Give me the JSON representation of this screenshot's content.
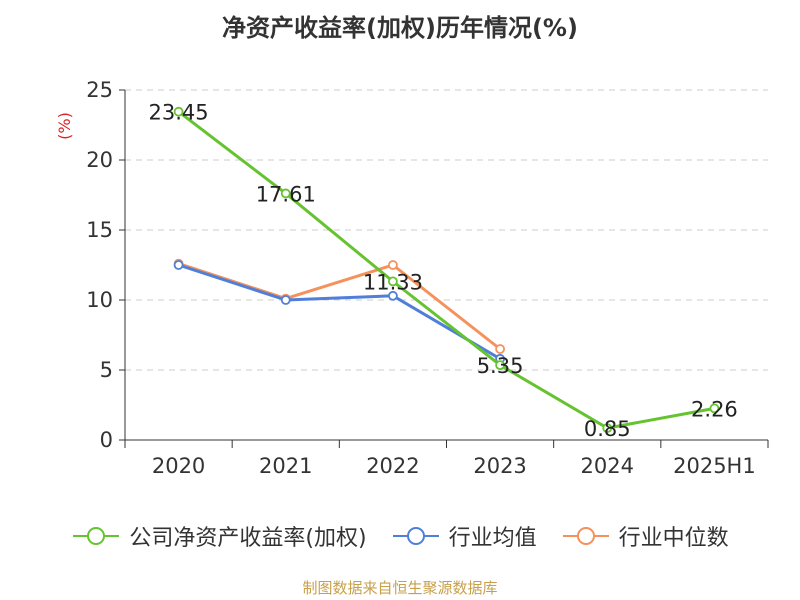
{
  "title": "净资产收益率(加权)历年情况(%)",
  "source_note": "制图数据来自恒生聚源数据库",
  "chart_data": {
    "type": "line",
    "categories": [
      "2020",
      "2021",
      "2022",
      "2023",
      "2024",
      "2025H1"
    ],
    "ylabel": "(%)",
    "ylim": [
      0,
      25
    ],
    "yticks": [
      0,
      5,
      10,
      15,
      20,
      25
    ],
    "grid": true,
    "legend_position": "bottom",
    "series": [
      {
        "name": "公司净资产收益率(加权)",
        "color": "#66c330",
        "values": [
          23.45,
          17.61,
          11.33,
          5.35,
          0.85,
          2.26
        ],
        "labels": [
          "23.45",
          "17.61",
          "11.33",
          "5.35",
          "0.85",
          "2.26"
        ]
      },
      {
        "name": "行业均值",
        "color": "#4f7fd9",
        "values": [
          12.5,
          10.0,
          10.3,
          5.8,
          null,
          null
        ]
      },
      {
        "name": "行业中位数",
        "color": "#f5915a",
        "values": [
          12.6,
          10.1,
          12.5,
          6.5,
          null,
          null
        ]
      }
    ]
  }
}
